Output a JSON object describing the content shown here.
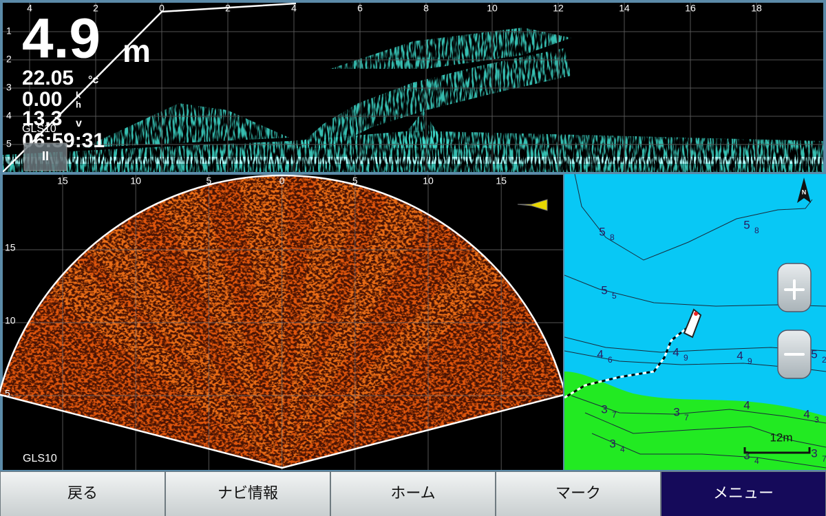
{
  "top_sonar": {
    "x_ticks": [
      "4",
      "2",
      "0",
      "2",
      "4",
      "6",
      "8",
      "10",
      "12",
      "14",
      "16",
      "18"
    ],
    "y_ticks": [
      "1",
      "2",
      "3",
      "4",
      "5"
    ],
    "depth": "4.9",
    "depth_unit": "m",
    "temperature": "22.05",
    "temperature_unit": "°c",
    "speed": "0.00",
    "speed_unit_top": "k",
    "speed_unit_bottom": "h",
    "voltage": "13.3",
    "voltage_unit": "v",
    "source": "GLS10",
    "time": "06:59:31",
    "pause": "II"
  },
  "fan_sonar": {
    "x_ticks": [
      "15",
      "10",
      "5",
      "0",
      "5",
      "10",
      "15"
    ],
    "y_ticks": [
      "15",
      "10",
      "5"
    ],
    "source": "GLS10"
  },
  "map": {
    "compass": "N",
    "contour_labels": [
      {
        "main": "5",
        "sub": "8"
      },
      {
        "main": "5",
        "sub": "8"
      },
      {
        "main": "5",
        "sub": "5"
      },
      {
        "main": "4",
        "sub": "6"
      },
      {
        "main": "4",
        "sub": "9"
      },
      {
        "main": "4",
        "sub": "9"
      },
      {
        "main": "5",
        "sub": "2"
      },
      {
        "main": "3",
        "sub": "7"
      },
      {
        "main": "3",
        "sub": "7"
      },
      {
        "main": "4"
      },
      {
        "main": "4",
        "sub": "3"
      },
      {
        "main": "3",
        "sub": "4"
      },
      {
        "main": "3",
        "sub": "4"
      },
      {
        "main": "3",
        "sub": "7"
      }
    ],
    "scale": "12m"
  },
  "buttons": [
    "戻る",
    "ナビ情報",
    "ホーム",
    "マーク",
    "メニュー"
  ]
}
